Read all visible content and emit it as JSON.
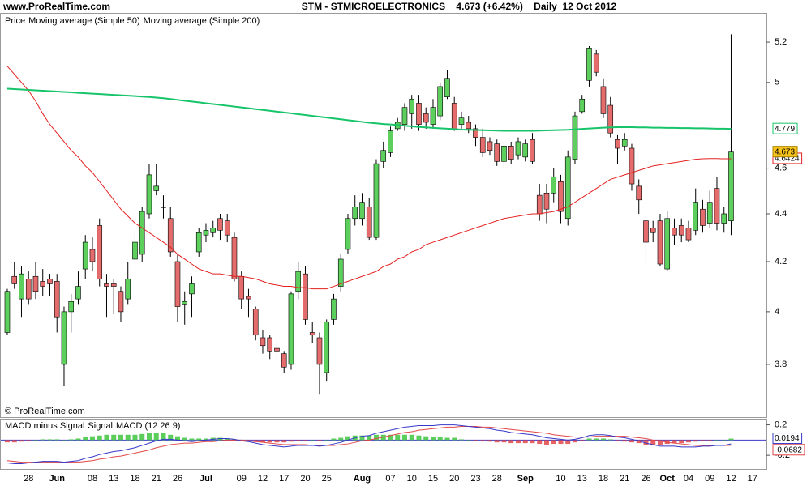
{
  "chart_data": [
    {
      "type": "candlestick",
      "header": "www.ProRealTime.com",
      "title": "STM - STMICROELECTRONICS    4.673 (+6.42%)    Daily  12 Oct 2012",
      "price_label": "Price",
      "watermark": "© ProRealTime.com",
      "log_scale": true,
      "up_color": "#5ccf5c",
      "down_color": "#e46c6c",
      "ylim": [
        3.61,
        5.35
      ],
      "yticks": [
        3.8,
        4,
        4.2,
        4.4,
        4.6,
        5,
        5.2
      ],
      "categories": [
        null,
        null,
        null,
        "28",
        null,
        null,
        null,
        "Jun",
        null,
        null,
        null,
        null,
        "08",
        null,
        null,
        "13",
        null,
        null,
        "18",
        null,
        null,
        "21",
        null,
        null,
        "26",
        null,
        null,
        null,
        "Jul",
        null,
        null,
        null,
        null,
        "09",
        null,
        null,
        "12",
        null,
        null,
        "17",
        null,
        null,
        "20",
        null,
        null,
        "25",
        null,
        null,
        null,
        null,
        "Aug",
        null,
        null,
        null,
        "07",
        null,
        null,
        "10",
        null,
        null,
        "15",
        null,
        null,
        "20",
        null,
        null,
        "23",
        null,
        null,
        "28",
        null,
        null,
        null,
        "Sep",
        null,
        null,
        null,
        null,
        "10",
        null,
        null,
        "13",
        null,
        null,
        "18",
        null,
        null,
        "21",
        null,
        null,
        "26",
        null,
        null,
        "Oct",
        null,
        null,
        "04",
        null,
        null,
        "09",
        null,
        null,
        "12",
        null,
        null,
        "17"
      ],
      "open": [
        3.92,
        4.14,
        4.05,
        4.13,
        4.14,
        4.12,
        4.13,
        4.12,
        3.8,
        4.0,
        4.05,
        4.17,
        4.25,
        4.35,
        4.11,
        4.11,
        4.08,
        4.05,
        4.21,
        4.23,
        4.4,
        4.5,
        4.43,
        4.38,
        4.2,
        4.03,
        4.07,
        4.24,
        4.31,
        4.32,
        4.38,
        4.37,
        4.3,
        4.14,
        4.06,
        4.01,
        3.9,
        3.9,
        3.86,
        3.84,
        3.8,
        4.08,
        4.15,
        3.92,
        3.9,
        3.77,
        3.97,
        4.1,
        4.25,
        4.38,
        4.38,
        4.43,
        4.3,
        4.63,
        4.67,
        4.78,
        4.8,
        4.85,
        4.9,
        4.85,
        4.8,
        4.84,
        4.93,
        4.9,
        4.8,
        4.81,
        4.78,
        4.74,
        4.72,
        4.71,
        4.63,
        4.7,
        4.66,
        4.65,
        4.73,
        4.48,
        4.49,
        4.49,
        4.54,
        4.38,
        4.64,
        4.86,
        5.01,
        5.14,
        4.98,
        4.89,
        4.73,
        4.7,
        4.69,
        4.52,
        4.37,
        4.34,
        4.37,
        4.17,
        4.34,
        4.35,
        4.34,
        4.33,
        4.42,
        4.36,
        4.51,
        4.36,
        4.37,
        null,
        null,
        null
      ],
      "high": [
        4.09,
        4.2,
        4.18,
        4.16,
        4.2,
        4.17,
        4.15,
        4.15,
        4.02,
        4.07,
        4.16,
        4.31,
        4.3,
        4.38,
        4.15,
        4.13,
        4.1,
        4.2,
        4.33,
        4.43,
        4.62,
        4.62,
        4.48,
        4.43,
        4.23,
        4.08,
        4.14,
        4.34,
        4.36,
        4.37,
        4.4,
        4.4,
        4.32,
        4.16,
        4.09,
        4.02,
        3.93,
        3.91,
        3.89,
        3.85,
        4.08,
        4.2,
        4.18,
        3.96,
        3.92,
        3.97,
        4.07,
        4.23,
        4.4,
        4.48,
        4.49,
        4.47,
        4.64,
        4.72,
        4.79,
        4.83,
        4.9,
        4.94,
        4.94,
        4.88,
        4.92,
        5.0,
        5.06,
        4.93,
        4.86,
        4.84,
        4.8,
        4.78,
        4.74,
        4.73,
        4.72,
        4.72,
        4.74,
        4.73,
        4.76,
        4.53,
        4.53,
        4.6,
        4.57,
        4.68,
        4.86,
        4.94,
        5.18,
        5.16,
        5.02,
        4.93,
        4.75,
        4.76,
        4.71,
        4.55,
        4.39,
        4.37,
        4.4,
        4.41,
        4.38,
        4.38,
        4.37,
        4.51,
        4.46,
        4.5,
        4.56,
        4.43,
        5.24,
        null,
        null,
        null
      ],
      "low": [
        3.91,
        4.09,
        3.98,
        4.03,
        4.05,
        4.06,
        4.06,
        3.92,
        3.72,
        3.92,
        4.03,
        4.13,
        4.16,
        4.1,
        3.98,
        3.99,
        3.96,
        4.03,
        4.18,
        4.2,
        4.38,
        4.48,
        4.38,
        4.22,
        3.96,
        3.95,
        3.98,
        4.22,
        4.28,
        4.3,
        4.29,
        4.28,
        4.12,
        4.01,
        3.98,
        3.89,
        3.84,
        3.82,
        3.82,
        3.77,
        3.78,
        4.05,
        3.95,
        3.88,
        3.69,
        3.74,
        3.95,
        4.08,
        4.23,
        4.35,
        4.35,
        4.29,
        4.29,
        4.6,
        4.65,
        4.77,
        4.77,
        4.78,
        4.77,
        4.78,
        4.78,
        4.82,
        4.92,
        4.77,
        4.78,
        4.76,
        4.7,
        4.65,
        4.66,
        4.61,
        4.6,
        4.62,
        4.64,
        4.63,
        4.62,
        4.37,
        4.36,
        4.45,
        4.36,
        4.35,
        4.62,
        4.85,
        4.98,
        5.03,
        4.83,
        4.74,
        4.62,
        4.68,
        4.5,
        4.4,
        4.2,
        4.28,
        4.18,
        4.16,
        4.27,
        4.28,
        4.28,
        4.31,
        4.32,
        4.34,
        4.33,
        4.32,
        4.31,
        null,
        null,
        null
      ],
      "close": [
        4.08,
        4.11,
        4.15,
        4.05,
        4.08,
        4.1,
        4.11,
        3.98,
        4.0,
        4.04,
        4.1,
        4.28,
        4.2,
        4.13,
        4.1,
        4.1,
        4.0,
        4.13,
        4.28,
        4.41,
        4.57,
        4.52,
        4.43,
        4.24,
        4.02,
        4.04,
        4.11,
        4.32,
        4.33,
        4.34,
        4.33,
        4.31,
        4.13,
        4.05,
        4.05,
        3.91,
        3.87,
        3.85,
        3.85,
        3.79,
        4.07,
        4.16,
        3.97,
        3.91,
        3.8,
        3.96,
        4.05,
        4.21,
        4.38,
        4.43,
        4.45,
        4.3,
        4.62,
        4.68,
        4.77,
        4.81,
        4.88,
        4.92,
        4.8,
        4.81,
        4.88,
        4.98,
        5.02,
        4.78,
        4.83,
        4.78,
        4.74,
        4.67,
        4.68,
        4.63,
        4.7,
        4.64,
        4.72,
        4.71,
        4.63,
        4.4,
        4.42,
        4.56,
        4.41,
        4.65,
        4.84,
        4.92,
        5.17,
        5.05,
        4.85,
        4.76,
        4.69,
        4.73,
        4.53,
        4.46,
        4.28,
        4.32,
        4.19,
        4.38,
        4.31,
        4.31,
        4.29,
        4.45,
        4.35,
        4.45,
        4.36,
        4.4,
        4.673,
        null,
        null,
        null
      ],
      "series": [
        {
          "name": "Moving average (Simple 50)",
          "color": "#e3201f",
          "values": [
            5.08,
            5.04,
            5.0,
            4.96,
            4.91,
            4.85,
            4.8,
            4.76,
            4.72,
            4.68,
            4.65,
            4.61,
            4.58,
            4.54,
            4.5,
            4.46,
            4.42,
            4.39,
            4.36,
            4.34,
            4.32,
            4.3,
            4.28,
            4.26,
            4.23,
            4.21,
            4.19,
            4.17,
            4.16,
            4.15,
            4.15,
            4.145,
            4.14,
            4.14,
            4.135,
            4.13,
            4.12,
            4.11,
            4.105,
            4.1,
            4.1,
            4.095,
            4.095,
            4.09,
            4.09,
            4.09,
            4.1,
            4.11,
            4.12,
            4.13,
            4.14,
            4.15,
            4.16,
            4.18,
            4.19,
            4.21,
            4.22,
            4.24,
            4.25,
            4.27,
            4.28,
            4.29,
            4.3,
            4.31,
            4.32,
            4.33,
            4.34,
            4.35,
            4.36,
            4.37,
            4.38,
            4.385,
            4.39,
            4.395,
            4.4,
            4.4,
            4.405,
            4.41,
            4.42,
            4.43,
            4.45,
            4.47,
            4.49,
            4.51,
            4.53,
            4.55,
            4.56,
            4.57,
            4.58,
            4.59,
            4.6,
            4.61,
            4.615,
            4.62,
            4.625,
            4.63,
            4.635,
            4.64,
            4.642,
            4.643,
            4.643,
            4.642,
            4.6424,
            null,
            null,
            null
          ]
        },
        {
          "name": "Moving average (Simple 200)",
          "color": "#17c46a",
          "values": [
            4.97,
            4.968,
            4.966,
            4.964,
            4.962,
            4.96,
            4.958,
            4.956,
            4.954,
            4.952,
            4.95,
            4.948,
            4.946,
            4.944,
            4.942,
            4.94,
            4.938,
            4.936,
            4.934,
            4.932,
            4.93,
            4.927,
            4.924,
            4.92,
            4.916,
            4.912,
            4.908,
            4.904,
            4.9,
            4.896,
            4.892,
            4.888,
            4.884,
            4.88,
            4.876,
            4.872,
            4.868,
            4.864,
            4.86,
            4.856,
            4.852,
            4.848,
            4.844,
            4.84,
            4.836,
            4.832,
            4.828,
            4.824,
            4.82,
            4.816,
            4.812,
            4.808,
            4.805,
            4.802,
            4.8,
            4.797,
            4.794,
            4.791,
            4.788,
            4.786,
            4.784,
            4.782,
            4.78,
            4.778,
            4.776,
            4.775,
            4.774,
            4.773,
            4.772,
            4.771,
            4.77,
            4.77,
            4.77,
            4.77,
            4.77,
            4.771,
            4.772,
            4.773,
            4.774,
            4.775,
            4.777,
            4.779,
            4.781,
            4.783,
            4.785,
            4.786,
            4.787,
            4.787,
            4.787,
            4.786,
            4.786,
            4.785,
            4.785,
            4.784,
            4.784,
            4.783,
            4.783,
            4.782,
            4.782,
            4.781,
            4.78,
            4.78,
            4.779,
            null,
            null,
            null
          ]
        }
      ]
    },
    {
      "type": "macd",
      "ylim": [
        -0.39,
        0.27
      ],
      "yticks": [
        -0.2,
        0.2
      ],
      "series": [
        {
          "name": "MACD minus Signal",
          "color": "#3ec43e",
          "values": [
            -0.03,
            -0.03,
            -0.02,
            -0.01,
            0.0,
            0.01,
            0.01,
            0.01,
            0.0,
            0.01,
            0.02,
            0.04,
            0.05,
            0.06,
            0.07,
            0.07,
            0.07,
            0.07,
            0.07,
            0.08,
            0.09,
            0.09,
            0.09,
            0.07,
            0.05,
            0.03,
            0.02,
            0.02,
            0.02,
            0.03,
            0.03,
            0.02,
            0.01,
            -0.01,
            -0.01,
            -0.02,
            -0.03,
            -0.03,
            -0.03,
            -0.03,
            -0.02,
            -0.01,
            -0.01,
            0.0,
            -0.01,
            0.0,
            0.02,
            0.03,
            0.05,
            0.06,
            0.06,
            0.06,
            0.07,
            0.07,
            0.07,
            0.07,
            0.07,
            0.07,
            0.06,
            0.05,
            0.04,
            0.04,
            0.03,
            0.03,
            0.01,
            0.0,
            -0.01,
            -0.01,
            -0.02,
            -0.03,
            -0.03,
            -0.04,
            -0.04,
            -0.04,
            -0.04,
            -0.05,
            -0.06,
            -0.05,
            -0.05,
            -0.05,
            -0.03,
            -0.01,
            0.02,
            0.02,
            0.02,
            0.01,
            -0.01,
            -0.02,
            -0.03,
            -0.04,
            -0.06,
            -0.06,
            -0.07,
            -0.05,
            -0.04,
            -0.04,
            -0.03,
            -0.02,
            -0.01,
            -0.01,
            0.0,
            0.0,
            0.0194,
            null,
            null,
            null
          ]
        },
        {
          "name": "Signal",
          "color": "#e34848",
          "values": [
            -0.27,
            -0.28,
            -0.29,
            -0.29,
            -0.29,
            -0.29,
            -0.29,
            -0.29,
            -0.29,
            -0.29,
            -0.29,
            -0.28,
            -0.27,
            -0.25,
            -0.24,
            -0.22,
            -0.21,
            -0.19,
            -0.17,
            -0.15,
            -0.13,
            -0.1,
            -0.08,
            -0.06,
            -0.05,
            -0.04,
            -0.04,
            -0.03,
            -0.02,
            -0.02,
            -0.01,
            0.0,
            0.0,
            0.0,
            -0.01,
            -0.02,
            -0.03,
            -0.04,
            -0.05,
            -0.06,
            -0.06,
            -0.06,
            -0.06,
            -0.07,
            -0.07,
            -0.07,
            -0.07,
            -0.06,
            -0.05,
            -0.03,
            -0.01,
            0.0,
            0.02,
            0.04,
            0.06,
            0.08,
            0.1,
            0.11,
            0.13,
            0.14,
            0.15,
            0.16,
            0.17,
            0.17,
            0.18,
            0.18,
            0.18,
            0.17,
            0.17,
            0.16,
            0.15,
            0.14,
            0.13,
            0.12,
            0.11,
            0.1,
            0.09,
            0.07,
            0.06,
            0.05,
            0.04,
            0.04,
            0.04,
            0.05,
            0.05,
            0.05,
            0.05,
            0.05,
            0.04,
            0.03,
            0.02,
            0.0,
            -0.01,
            -0.03,
            -0.04,
            -0.05,
            -0.06,
            -0.07,
            -0.07,
            -0.07,
            -0.07,
            -0.07,
            -0.0682,
            null,
            null,
            null
          ]
        },
        {
          "name": "MACD (12 26 9)",
          "color": "#3838c8",
          "values": [
            -0.3,
            -0.31,
            -0.31,
            -0.3,
            -0.29,
            -0.28,
            -0.28,
            -0.28,
            -0.29,
            -0.28,
            -0.27,
            -0.24,
            -0.22,
            -0.19,
            -0.17,
            -0.15,
            -0.14,
            -0.12,
            -0.1,
            -0.07,
            -0.04,
            -0.01,
            0.01,
            0.01,
            0.0,
            -0.01,
            -0.02,
            -0.01,
            0.0,
            0.01,
            0.02,
            0.02,
            0.01,
            -0.01,
            -0.02,
            -0.04,
            -0.06,
            -0.07,
            -0.08,
            -0.09,
            -0.08,
            -0.07,
            -0.07,
            -0.07,
            -0.08,
            -0.07,
            -0.05,
            -0.03,
            0.0,
            0.03,
            0.05,
            0.06,
            0.09,
            0.11,
            0.13,
            0.15,
            0.17,
            0.18,
            0.19,
            0.19,
            0.19,
            0.2,
            0.2,
            0.2,
            0.19,
            0.18,
            0.17,
            0.16,
            0.15,
            0.13,
            0.12,
            0.1,
            0.09,
            0.08,
            0.07,
            0.05,
            0.03,
            0.02,
            0.01,
            0.0,
            0.01,
            0.03,
            0.06,
            0.07,
            0.07,
            0.06,
            0.04,
            0.03,
            0.01,
            -0.01,
            -0.04,
            -0.06,
            -0.08,
            -0.08,
            -0.08,
            -0.09,
            -0.09,
            -0.09,
            -0.08,
            -0.08,
            -0.07,
            -0.07,
            -0.0488,
            null,
            null,
            null
          ]
        }
      ]
    }
  ]
}
